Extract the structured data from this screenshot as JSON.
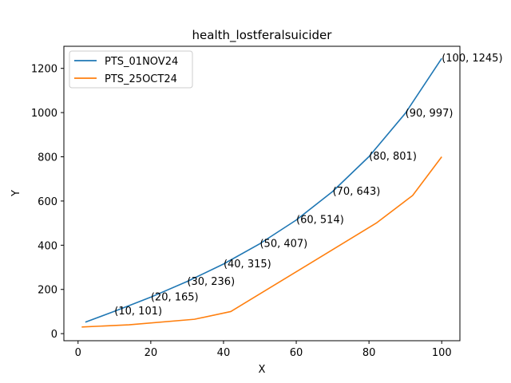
{
  "chart_data": {
    "type": "line",
    "title": "health_lostferalsuicider",
    "xlabel": "X",
    "ylabel": "Y",
    "xlim": [
      -3.9,
      105
    ],
    "ylim": [
      -32,
      1300
    ],
    "xticks": [
      0,
      20,
      40,
      60,
      80,
      100
    ],
    "yticks": [
      0,
      200,
      400,
      600,
      800,
      1000,
      1200
    ],
    "grid": false,
    "legend_position": "top-left",
    "series": [
      {
        "name": "PTS_01NOV24",
        "color": "#1f77b4",
        "x": [
          2,
          10,
          20,
          30,
          40,
          50,
          60,
          70,
          80,
          90,
          100
        ],
        "y": [
          52,
          101,
          165,
          236,
          315,
          407,
          514,
          643,
          801,
          997,
          1245
        ]
      },
      {
        "name": "PTS_25OCT24",
        "color": "#ff7f0e",
        "x": [
          1,
          14,
          32,
          42,
          82,
          92,
          100
        ],
        "y": [
          30,
          40,
          65,
          100,
          500,
          625,
          800
        ]
      }
    ],
    "annotations": [
      {
        "x": 10,
        "y": 101,
        "text": "(10, 101)"
      },
      {
        "x": 20,
        "y": 165,
        "text": "(20, 165)"
      },
      {
        "x": 30,
        "y": 236,
        "text": "(30, 236)"
      },
      {
        "x": 40,
        "y": 315,
        "text": "(40, 315)"
      },
      {
        "x": 50,
        "y": 407,
        "text": "(50, 407)"
      },
      {
        "x": 60,
        "y": 514,
        "text": "(60, 514)"
      },
      {
        "x": 70,
        "y": 643,
        "text": "(70, 643)"
      },
      {
        "x": 80,
        "y": 801,
        "text": "(80, 801)"
      },
      {
        "x": 90,
        "y": 997,
        "text": "(90, 997)"
      },
      {
        "x": 100,
        "y": 1245,
        "text": "(100, 1245)"
      }
    ]
  }
}
